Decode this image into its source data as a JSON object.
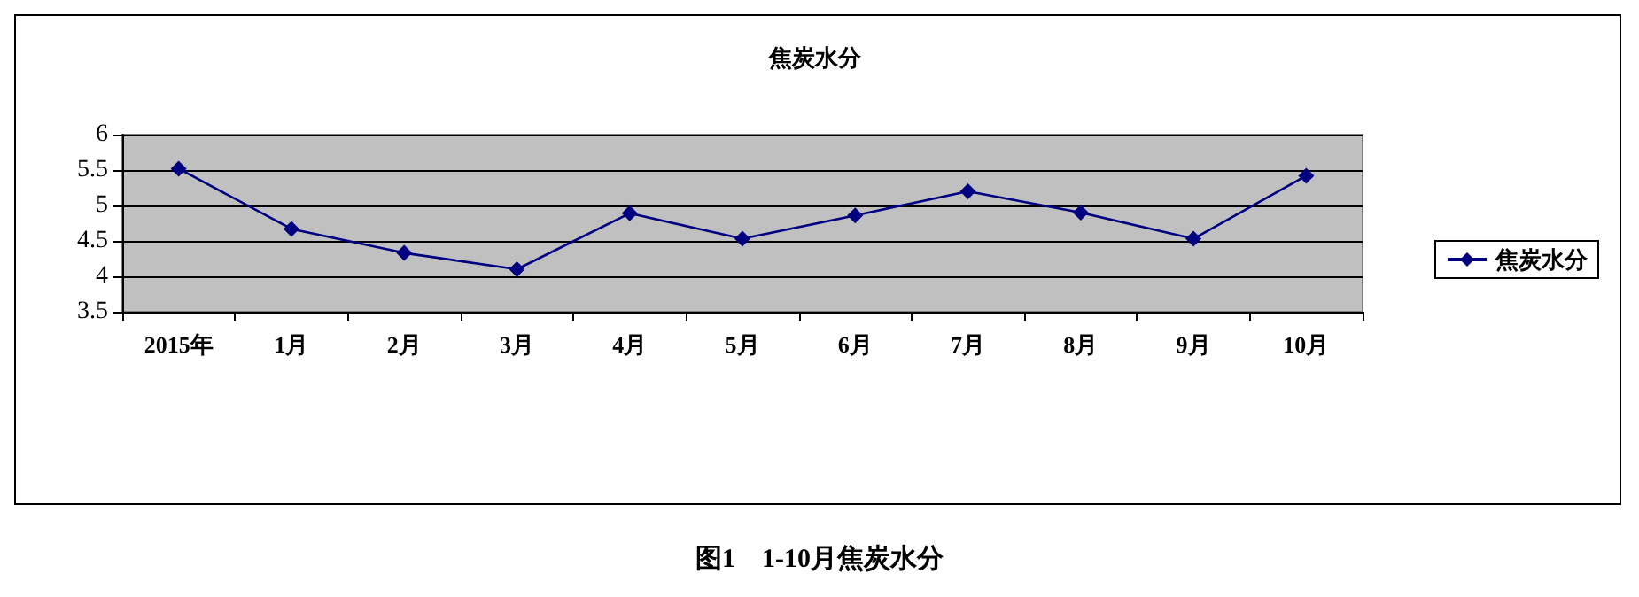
{
  "chart_data": {
    "type": "line",
    "title": "焦炭水分",
    "categories": [
      "2015年",
      "1月",
      "2月",
      "3月",
      "4月",
      "5月",
      "6月",
      "7月",
      "8月",
      "9月",
      "10月"
    ],
    "series": [
      {
        "name": "焦炭水分",
        "color": "#000080",
        "values": [
          5.52,
          4.67,
          4.33,
          4.1,
          4.89,
          4.53,
          4.86,
          5.2,
          4.9,
          4.53,
          5.42
        ]
      }
    ],
    "ylim": [
      3.5,
      6
    ],
    "yticks": [
      3.5,
      4,
      4.5,
      5,
      5.5,
      6
    ],
    "grid": "y",
    "legend": "right",
    "marker": "diamond",
    "line_style": "solid",
    "annotations": [
      "图1　1-10月焦炭水分"
    ]
  }
}
